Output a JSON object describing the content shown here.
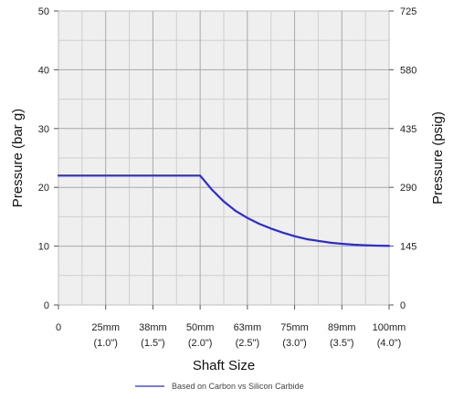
{
  "chart_data": {
    "type": "line",
    "title": "",
    "xlabel": "Shaft Size",
    "ylabel": "Pressure (bar g)",
    "y2label": "Pressure (psig)",
    "x_categories": [
      {
        "top": "0",
        "bottom": ""
      },
      {
        "top": "25mm",
        "bottom": "(1.0\")"
      },
      {
        "top": "38mm",
        "bottom": "(1.5\")"
      },
      {
        "top": "50mm",
        "bottom": "(2.0\")"
      },
      {
        "top": "63mm",
        "bottom": "(2.5\")"
      },
      {
        "top": "75mm",
        "bottom": "(3.0\")"
      },
      {
        "top": "89mm",
        "bottom": "(3.5\")"
      },
      {
        "top": "100mm",
        "bottom": "(4.0\")"
      }
    ],
    "xlim": [
      0,
      7
    ],
    "ylim": [
      0,
      50
    ],
    "y_ticks": [
      "0",
      "10",
      "20",
      "30",
      "40",
      "50"
    ],
    "y2_ticks": [
      "0",
      "145",
      "290",
      "435",
      "580",
      "725"
    ],
    "grid": true,
    "legend_position": "bottom-center",
    "series": [
      {
        "name": "Based on Carbon vs Silicon Carbide",
        "color": "#2b2bd9",
        "points": [
          [
            0,
            22
          ],
          [
            3,
            22
          ],
          [
            3.25,
            19.6
          ],
          [
            3.5,
            17.6
          ],
          [
            3.75,
            16.0
          ],
          [
            4,
            14.8
          ],
          [
            4.25,
            13.8
          ],
          [
            4.5,
            13.0
          ],
          [
            4.75,
            12.3
          ],
          [
            5,
            11.7
          ],
          [
            5.25,
            11.2
          ],
          [
            5.5,
            10.9
          ],
          [
            5.75,
            10.6
          ],
          [
            6,
            10.4
          ],
          [
            6.25,
            10.25
          ],
          [
            6.5,
            10.15
          ],
          [
            6.75,
            10.08
          ],
          [
            7,
            10.05
          ]
        ]
      }
    ]
  }
}
